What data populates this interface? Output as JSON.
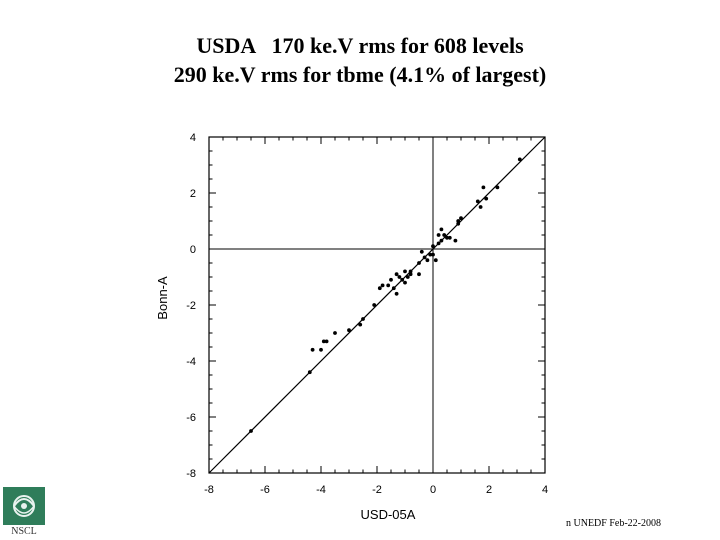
{
  "header": {
    "title_line_1": "USDA   170 ke.V rms for 608 levels",
    "title_line_2": "290 ke.V rms for tbme (4.1% of largest)"
  },
  "footer": {
    "text": "n UNEDF Feb-22-2008"
  },
  "logo": {
    "text": "NSCL"
  },
  "chart_data": {
    "type": "scatter",
    "title": "",
    "xlabel": "USD-05A",
    "ylabel": "Bonn-A",
    "xlim": [
      -8,
      4
    ],
    "ylim": [
      -8,
      4
    ],
    "xticks": [
      -8,
      -6,
      -4,
      -2,
      0,
      2,
      4
    ],
    "yticks": [
      -8,
      -6,
      -4,
      -2,
      0,
      2,
      4
    ],
    "xtick_labels": [
      "-8",
      "-6",
      "-4",
      "-2",
      "0",
      "2",
      "4"
    ],
    "ytick_labels": [
      "-8",
      "-6",
      "-4",
      "-2",
      "0",
      "2",
      "4"
    ],
    "grid": false,
    "reference_lines": {
      "diagonal_y_equals_x": true,
      "x_zero": true,
      "y_zero": true
    },
    "points": [
      [
        -6.5,
        -6.5
      ],
      [
        -4.4,
        -4.4
      ],
      [
        -4.3,
        -3.6
      ],
      [
        -4.0,
        -3.6
      ],
      [
        -3.9,
        -3.3
      ],
      [
        -3.8,
        -3.3
      ],
      [
        -3.5,
        -3.0
      ],
      [
        -3.0,
        -2.9
      ],
      [
        -2.6,
        -2.7
      ],
      [
        -2.5,
        -2.5
      ],
      [
        -2.1,
        -2.0
      ],
      [
        -1.9,
        -1.4
      ],
      [
        -1.8,
        -1.3
      ],
      [
        -1.6,
        -1.3
      ],
      [
        -1.5,
        -1.1
      ],
      [
        -1.4,
        -1.4
      ],
      [
        -1.3,
        -1.6
      ],
      [
        -1.3,
        -0.9
      ],
      [
        -1.2,
        -1.0
      ],
      [
        -1.1,
        -1.1
      ],
      [
        -1.0,
        -1.2
      ],
      [
        -1.0,
        -0.8
      ],
      [
        -0.9,
        -1.0
      ],
      [
        -0.8,
        -0.8
      ],
      [
        -0.8,
        -0.9
      ],
      [
        -0.5,
        -0.9
      ],
      [
        -0.5,
        -0.5
      ],
      [
        -0.4,
        -0.1
      ],
      [
        -0.3,
        -0.3
      ],
      [
        -0.2,
        -0.4
      ],
      [
        -0.1,
        -0.2
      ],
      [
        0.0,
        -0.2
      ],
      [
        0.0,
        0.1
      ],
      [
        0.1,
        -0.4
      ],
      [
        0.2,
        0.2
      ],
      [
        0.2,
        0.5
      ],
      [
        0.3,
        0.7
      ],
      [
        0.3,
        0.3
      ],
      [
        0.4,
        0.5
      ],
      [
        0.5,
        0.4
      ],
      [
        0.6,
        0.4
      ],
      [
        0.8,
        0.3
      ],
      [
        0.9,
        0.9
      ],
      [
        0.9,
        1.0
      ],
      [
        1.0,
        1.1
      ],
      [
        1.6,
        1.7
      ],
      [
        1.7,
        1.5
      ],
      [
        1.8,
        2.2
      ],
      [
        1.9,
        1.8
      ],
      [
        2.3,
        2.2
      ],
      [
        3.1,
        3.2
      ]
    ]
  }
}
